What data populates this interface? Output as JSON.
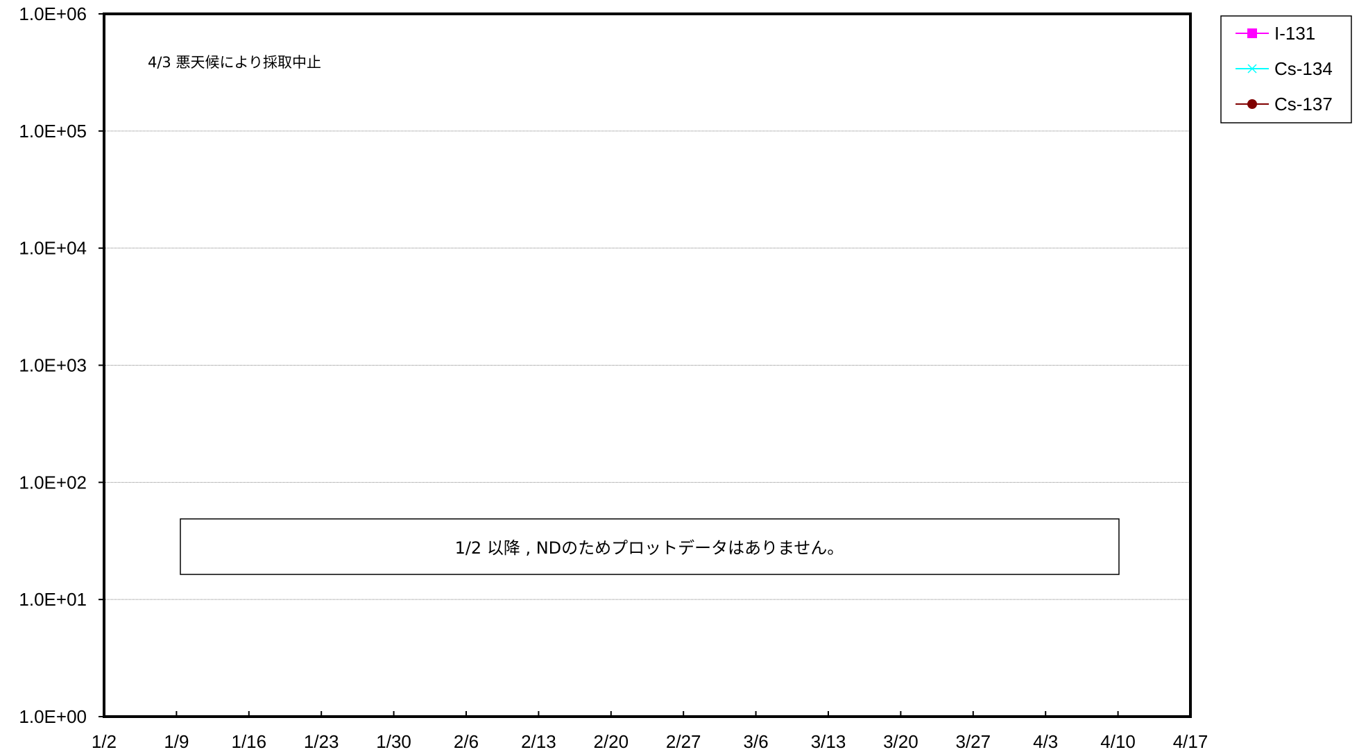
{
  "chart_data": {
    "type": "line",
    "title": "",
    "xlabel": "",
    "ylabel": "",
    "y_scale": "log",
    "ylim": [
      1,
      1000000
    ],
    "y_tick_labels": [
      "1.0E+00",
      "1.0E+01",
      "1.0E+02",
      "1.0E+03",
      "1.0E+04",
      "1.0E+05",
      "1.0E+06"
    ],
    "x_tick_labels": [
      "1/2",
      "1/9",
      "1/16",
      "1/23",
      "1/30",
      "2/6",
      "2/13",
      "2/20",
      "2/27",
      "3/6",
      "3/13",
      "3/20",
      "3/27",
      "4/3",
      "4/10",
      "4/17"
    ],
    "grid": "horizontal",
    "legend_position": "top-right",
    "series": [
      {
        "name": "I-131",
        "color": "#ff00ff",
        "marker": "square",
        "values": []
      },
      {
        "name": "Cs-134",
        "color": "#00ffff",
        "marker": "x",
        "values": []
      },
      {
        "name": "Cs-137",
        "color": "#800000",
        "marker": "circle",
        "values": []
      }
    ],
    "annotations": {
      "weather_note": "4/3 悪天候により採取中止",
      "nd_note": "1/2 以降 , NDのためプロットデータはありません。"
    }
  }
}
